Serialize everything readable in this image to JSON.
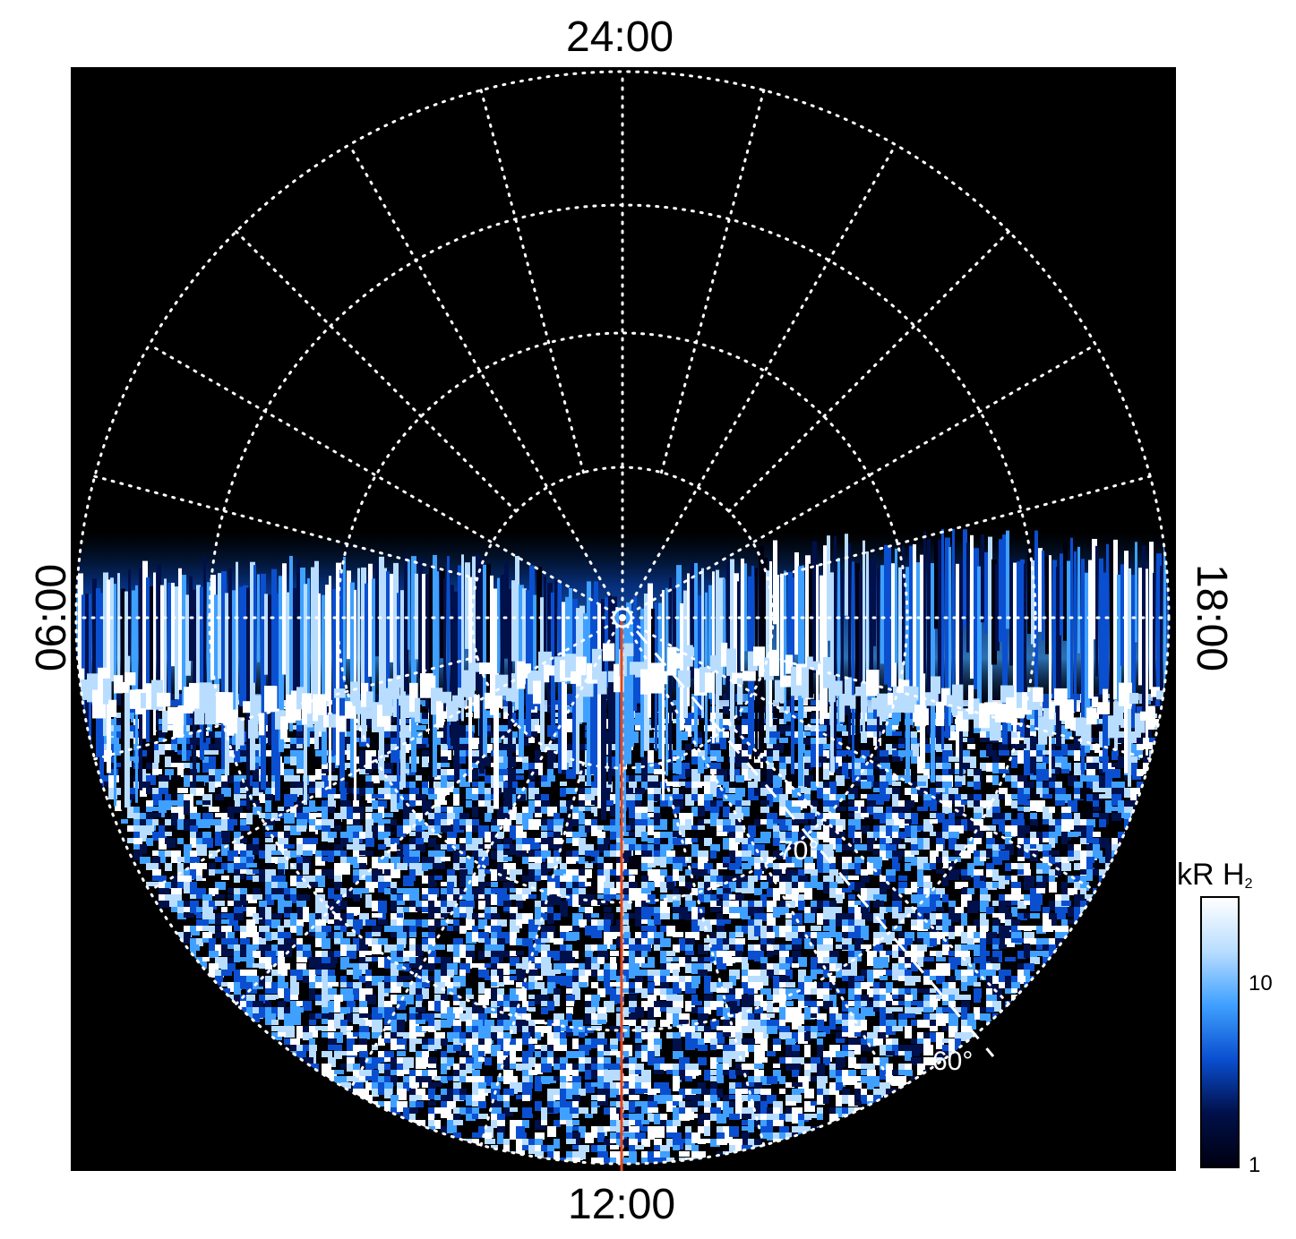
{
  "labels": {
    "top": "24:00",
    "bottom": "12:00",
    "left": "06:00",
    "right": "18:00",
    "lat70": "70°",
    "lat60": "60°"
  },
  "colorbar": {
    "title": "kR H",
    "title_sub": "2",
    "ticks": [
      "10",
      "1"
    ],
    "scale": "log",
    "range": [
      1,
      25
    ],
    "colors": [
      "#000010",
      "#00104a",
      "#0a4fd0",
      "#3fa0ff",
      "#b8ddff",
      "#ffffff"
    ]
  },
  "chart_data": {
    "type": "heatmap",
    "projection": "polar (orthographic, view from pole)",
    "local_time_labels": [
      "24:00",
      "06:00",
      "12:00",
      "18:00"
    ],
    "latitude_annotations": [
      "70°",
      "60°"
    ],
    "colorbar_label": "kR H2",
    "colorbar_scale": "log",
    "colorbar_ticks": [
      1,
      10
    ],
    "grid": true,
    "meridian_marker": {
      "local_time": "12:00",
      "color": "#e0481e"
    }
  },
  "colors": {
    "background": "#000000",
    "grid": "#ffffff",
    "meridian": "#e0481e",
    "aurora_bright": "#ffffff",
    "aurora_mid": "#3fa0ff",
    "aurora_dark": "#00104a"
  }
}
